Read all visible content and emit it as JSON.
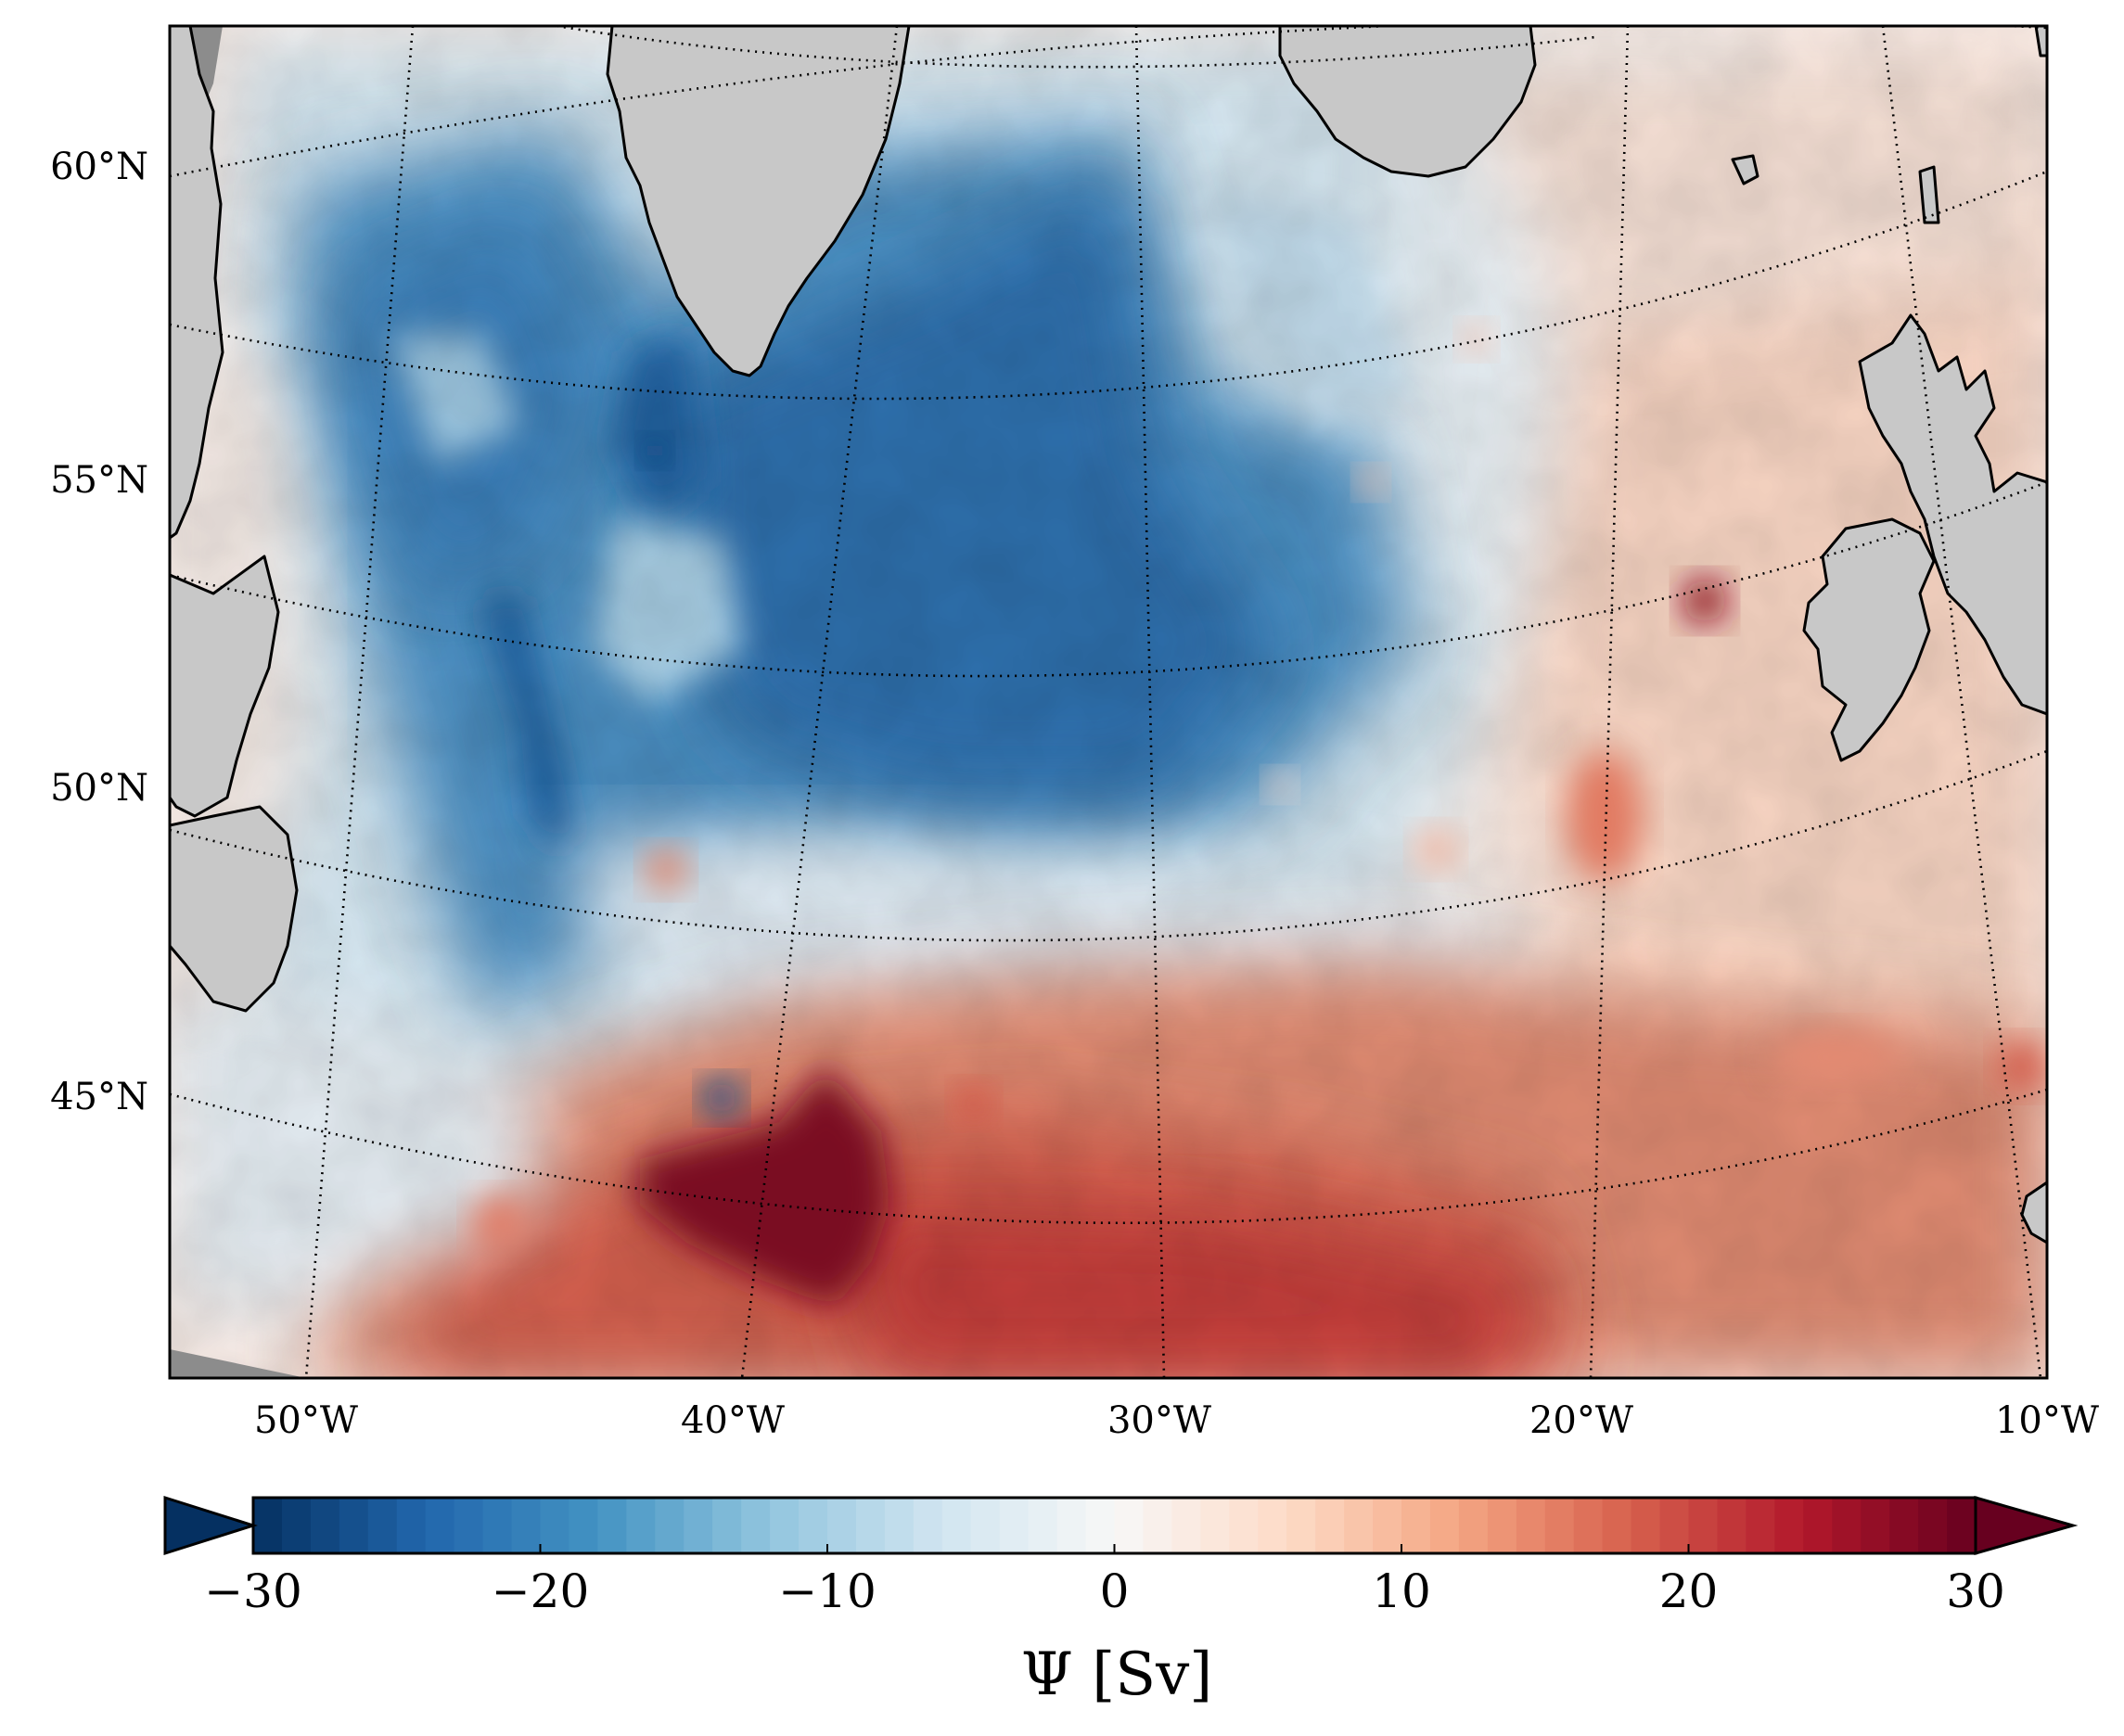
{
  "map": {
    "projection": "conic",
    "lat_labels": [
      "60°N",
      "55°N",
      "50°N",
      "45°N"
    ],
    "lon_labels": [
      "50°W",
      "40°W",
      "30°W",
      "20°W",
      "10°W"
    ],
    "graticule_style": "dotted",
    "land_color": "#c8c8c8",
    "missing_color": "#8c8c8c",
    "landmasses": [
      "greenland-landmass",
      "iceland-landmass",
      "labrador-coast-landmass",
      "newfoundland-landmass",
      "british-isles-landmass",
      "ireland-landmass",
      "iberia-corner-landmass",
      "faroe-islands-landmass"
    ],
    "features": [
      {
        "name": "subpolar-gyre-core",
        "type": "negative",
        "value": -25
      },
      {
        "name": "labrador-current-edge",
        "type": "negative",
        "value": -28
      },
      {
        "name": "subtropical-gyre-core",
        "type": "positive",
        "value": 30
      },
      {
        "name": "rockall-eddy",
        "type": "positive",
        "value": 30
      },
      {
        "name": "southern-positive-band",
        "type": "positive",
        "value": 22
      }
    ]
  },
  "colorbar": {
    "ticks": [
      "−30",
      "−20",
      "−10",
      "0",
      "10",
      "20",
      "30"
    ],
    "tick_values": [
      -30,
      -20,
      -10,
      0,
      10,
      20,
      30
    ],
    "min": -30,
    "max": 30,
    "levels": 60,
    "extend": "both",
    "label": "Ψ [Sv]",
    "colormap": "RdBu_r",
    "colors": [
      "#053061",
      "#2166ac",
      "#4393c3",
      "#92c5de",
      "#d1e5f0",
      "#f7f7f7",
      "#fddbc7",
      "#f4a582",
      "#d6604d",
      "#b2182b",
      "#67001f"
    ]
  }
}
